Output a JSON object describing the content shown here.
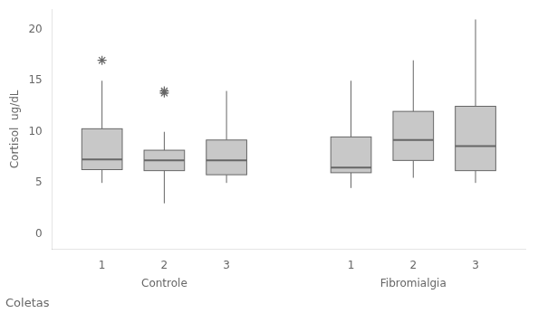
{
  "chart_data": {
    "type": "box",
    "ylabel": "Cortisol  ug/dL",
    "xlabel": "Coletas",
    "group_labels": [
      "Controle",
      "Fibromialgia"
    ],
    "categories": [
      "1",
      "2",
      "3",
      "1",
      "2",
      "3"
    ],
    "boxes": [
      {
        "q1": 6.3,
        "median": 7.3,
        "q3": 10.3,
        "whislo": 5.0,
        "whishi": 15.0,
        "fliers": [
          17.0
        ]
      },
      {
        "q1": 6.2,
        "median": 7.2,
        "q3": 8.2,
        "whislo": 3.0,
        "whishi": 10.0,
        "fliers": [
          13.8,
          14.0
        ]
      },
      {
        "q1": 5.8,
        "median": 7.2,
        "q3": 9.2,
        "whislo": 5.0,
        "whishi": 14.0,
        "fliers": []
      },
      {
        "q1": 6.0,
        "median": 6.5,
        "q3": 9.5,
        "whislo": 4.5,
        "whishi": 15.0,
        "fliers": []
      },
      {
        "q1": 7.2,
        "median": 9.2,
        "q3": 12.0,
        "whislo": 5.5,
        "whishi": 17.0,
        "fliers": []
      },
      {
        "q1": 6.2,
        "median": 8.6,
        "q3": 12.5,
        "whislo": 5.0,
        "whishi": 21.0,
        "fliers": []
      }
    ],
    "ylim": [
      -1.5,
      22
    ],
    "yticks": [
      0,
      5,
      10,
      15,
      20
    ],
    "color": "#c8c8c8",
    "marker": "star",
    "grid": false
  }
}
